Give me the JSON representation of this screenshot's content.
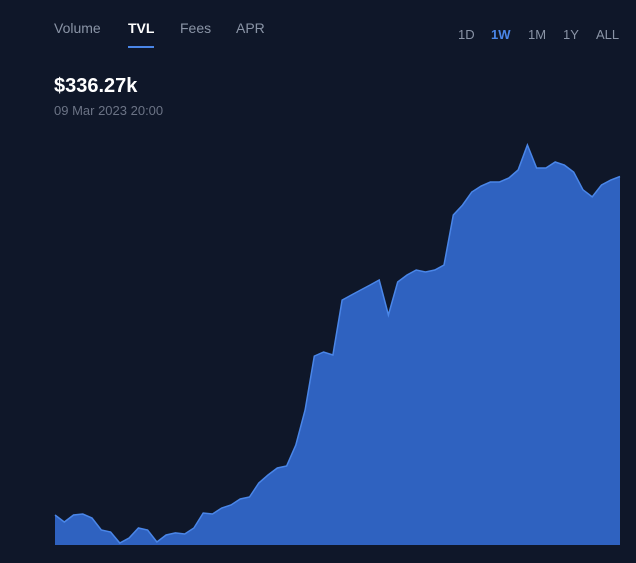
{
  "tabs": {
    "items": [
      "Volume",
      "TVL",
      "Fees",
      "APR"
    ],
    "active": 1
  },
  "ranges": {
    "items": [
      "1D",
      "1W",
      "1M",
      "1Y",
      "ALL"
    ],
    "active": 1
  },
  "headline": {
    "value": "$336.27k",
    "date": "09 Mar 2023 20:00"
  },
  "chart_data": {
    "type": "area",
    "color": "#4a86e8",
    "fill": "#2f62c0",
    "values": [
      27.4,
      21.0,
      27.4,
      28.3,
      24.6,
      13.7,
      11.9,
      1.8,
      6.4,
      15.5,
      13.7,
      2.7,
      9.1,
      11.0,
      10.0,
      15.5,
      29.2,
      28.3,
      33.8,
      36.5,
      42.0,
      43.8,
      56.6,
      63.9,
      70.3,
      72.1,
      91.2,
      123.2,
      172.4,
      176.1,
      173.4,
      223.5,
      228.1,
      232.7,
      237.2,
      241.8,
      209.9,
      240.0,
      246.4,
      250.9,
      249.1,
      250.9,
      255.5,
      301.1,
      310.2,
      322.1,
      327.6,
      331.2,
      331.2,
      334.9,
      342.2,
      365.0,
      344.0,
      344.0,
      349.5,
      346.7,
      340.3,
      324.1,
      317.7,
      328.5,
      333.0,
      336.27
    ],
    "ylim": [
      0,
      365
    ]
  }
}
